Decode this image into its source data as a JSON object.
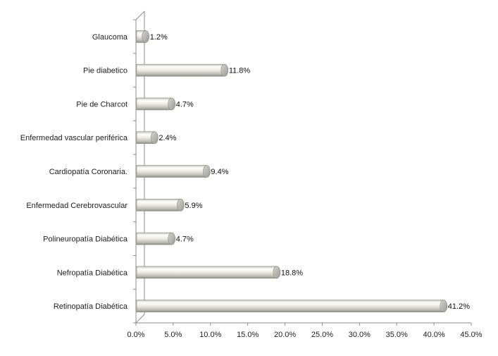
{
  "chart_data": {
    "type": "bar",
    "orientation": "horizontal",
    "categories": [
      "Glaucoma",
      "Pie diabetico",
      "Pie de Charcot",
      "Enfermedad vascular periférica",
      "Cardiopatía Coronaria.",
      "Enfermedad Cerebrovascular",
      "Polineuropatía Diabética",
      "Nefropatía Diabética",
      "Retinopatía Diabética"
    ],
    "values": [
      1.2,
      11.8,
      4.7,
      2.4,
      9.4,
      5.9,
      4.7,
      18.8,
      41.2
    ],
    "data_labels": [
      "1.2%",
      "11.8%",
      "4.7%",
      "2.4%",
      "9.4%",
      "5.9%",
      "4.7%",
      "18.8%",
      "41.2%"
    ],
    "x_ticks": [
      "0.0%",
      "5.0%",
      "10.0%",
      "15.0%",
      "20.0%",
      "25.0%",
      "30.0%",
      "35.0%",
      "40.0%",
      "45.0%"
    ],
    "xlim": [
      0,
      45
    ],
    "title": "",
    "xlabel": "",
    "ylabel": "",
    "grid": false,
    "legend": false,
    "style": "3d-cylinder",
    "colors": {
      "bar_light": "#ffffff",
      "bar_mid": "#e6e6de",
      "bar_dark": "#a8a89e",
      "bar_edge": "#8a8a82",
      "axis": "#8c8c8c"
    }
  }
}
